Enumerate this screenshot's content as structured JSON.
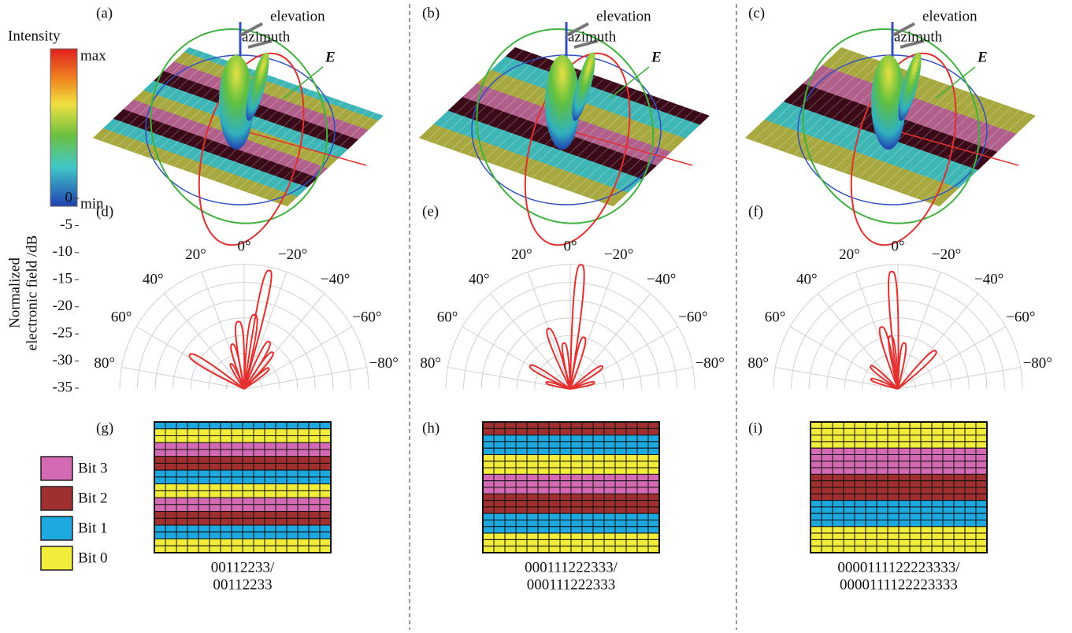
{
  "panels": [
    "(a)",
    "(b)",
    "(c)"
  ],
  "intensity": {
    "title": "Intensity",
    "max": "max",
    "min": "min"
  },
  "labels3d": {
    "elevation": "elevation",
    "azimuth": "azimuth",
    "E": "E"
  },
  "polar": {
    "ylabel": [
      "Normalized",
      "electronic field /dB"
    ],
    "rlim": [
      -35,
      0
    ],
    "rticks": [
      0,
      -5,
      -10,
      -15,
      -20,
      -25,
      -30,
      -35
    ],
    "angle_ticks": [
      {
        "value": 0,
        "label": "0°"
      },
      {
        "value": 20,
        "label": "20°"
      },
      {
        "value": 40,
        "label": "40°"
      },
      {
        "value": 60,
        "label": "60°"
      },
      {
        "value": 80,
        "label": "80°"
      },
      {
        "value": -20,
        "label": "−20°"
      },
      {
        "value": -40,
        "label": "−40°"
      },
      {
        "value": -60,
        "label": "−60°"
      },
      {
        "value": -80,
        "label": "−80°"
      }
    ],
    "plots": [
      {
        "label": "(d)",
        "lobes": [
          {
            "angle": -12,
            "value": -1
          },
          {
            "angle": -8,
            "value": -14
          },
          {
            "angle": -28,
            "value": -20
          },
          {
            "angle": -38,
            "value": -22
          },
          {
            "angle": -50,
            "value": -26
          },
          {
            "angle": 5,
            "value": -16
          },
          {
            "angle": 15,
            "value": -22
          },
          {
            "angle": 28,
            "value": -27
          },
          {
            "angle": 58,
            "value": -17
          }
        ]
      },
      {
        "label": "(e)",
        "lobes": [
          {
            "angle": -5,
            "value": 0
          },
          {
            "angle": 20,
            "value": -17
          },
          {
            "angle": -15,
            "value": -20
          },
          {
            "angle": 8,
            "value": -22
          },
          {
            "angle": 60,
            "value": -22
          },
          {
            "angle": -55,
            "value": -24
          },
          {
            "angle": 75,
            "value": -28
          },
          {
            "angle": -75,
            "value": -28
          }
        ]
      },
      {
        "label": "(f)",
        "lobes": [
          {
            "angle": 3,
            "value": -2
          },
          {
            "angle": 15,
            "value": -17
          },
          {
            "angle": 8,
            "value": -20
          },
          {
            "angle": -8,
            "value": -22
          },
          {
            "angle": -45,
            "value": -20
          },
          {
            "angle": 50,
            "value": -25
          },
          {
            "angle": 70,
            "value": -27
          }
        ]
      }
    ]
  },
  "legend": [
    {
      "label": "Bit 3",
      "bit": 3,
      "color": "#d46ab4"
    },
    {
      "label": "Bit 2",
      "bit": 2,
      "color": "#a0302f"
    },
    {
      "label": "Bit 1",
      "bit": 1,
      "color": "#1ea8e0"
    },
    {
      "label": "Bit 0",
      "bit": 0,
      "color": "#f2ec3a"
    }
  ],
  "codings": [
    {
      "label": "(g)",
      "caption": [
        "00112233/",
        "00112233"
      ],
      "rows": [
        1,
        0,
        0,
        3,
        3,
        2,
        2,
        1,
        1,
        0,
        0,
        3,
        3,
        2,
        2,
        1,
        1,
        0,
        0
      ]
    },
    {
      "label": "(h)",
      "caption": [
        "000111222333/",
        "000111222333"
      ],
      "rows": [
        2,
        2,
        1,
        1,
        1,
        0,
        0,
        0,
        3,
        3,
        3,
        2,
        2,
        2,
        1,
        1,
        1,
        0,
        0,
        0
      ]
    },
    {
      "label": "(i)",
      "caption": [
        "0000111122223333/",
        "0000111122223333"
      ],
      "rows": [
        0,
        0,
        0,
        0,
        3,
        3,
        3,
        3,
        2,
        2,
        2,
        2,
        1,
        1,
        1,
        1,
        0,
        0,
        0,
        0
      ]
    }
  ]
}
